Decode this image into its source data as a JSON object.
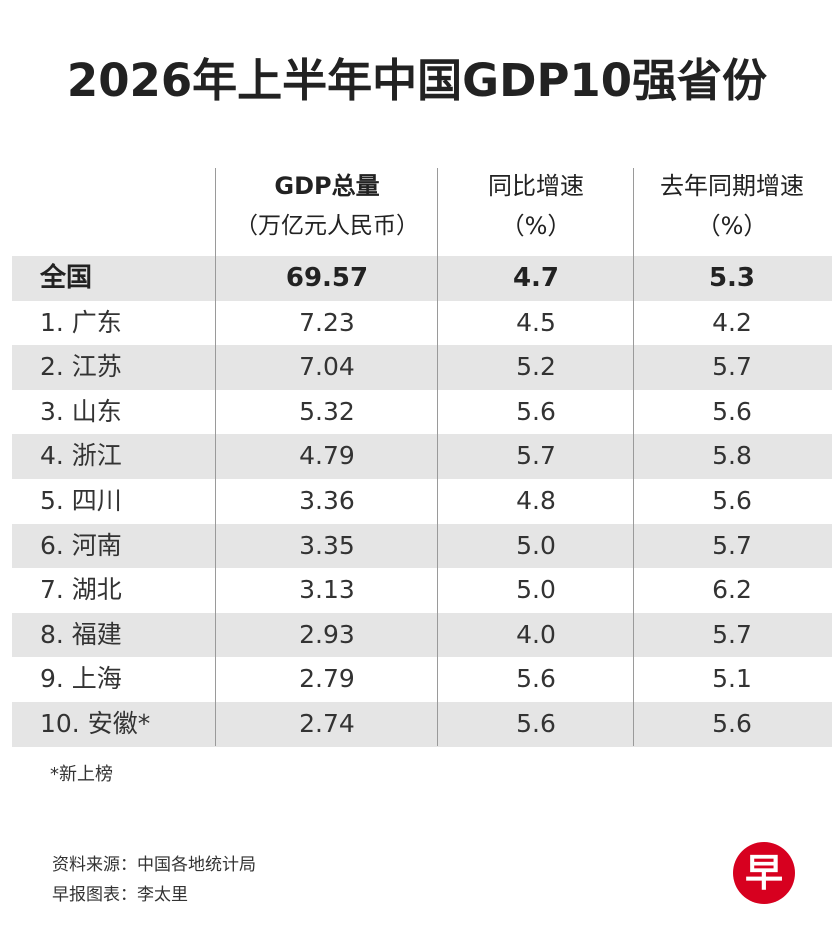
{
  "title": "2026年上半年中国GDP10强省份",
  "columns": {
    "gdp": {
      "line1": "GDP总量",
      "line2": "（万亿元人民币）"
    },
    "yoy": {
      "line1": "同比增速",
      "line2": "（%）"
    },
    "last_year": {
      "line1": "去年同期增速",
      "line2": "（%）"
    }
  },
  "rows": [
    {
      "name": "全国",
      "gdp": "69.57",
      "yoy": "4.7",
      "last_year": "5.3"
    },
    {
      "name": "1. 广东",
      "gdp": "7.23",
      "yoy": "4.5",
      "last_year": "4.2"
    },
    {
      "name": "2. 江苏",
      "gdp": "7.04",
      "yoy": "5.2",
      "last_year": "5.7"
    },
    {
      "name": "3. 山东",
      "gdp": "5.32",
      "yoy": "5.6",
      "last_year": "5.6"
    },
    {
      "name": "4. 浙江",
      "gdp": "4.79",
      "yoy": "5.7",
      "last_year": "5.8"
    },
    {
      "name": "5. 四川",
      "gdp": "3.36",
      "yoy": "4.8",
      "last_year": "5.6"
    },
    {
      "name": "6. 河南",
      "gdp": "3.35",
      "yoy": "5.0",
      "last_year": "5.7"
    },
    {
      "name": "7. 湖北",
      "gdp": "3.13",
      "yoy": "5.0",
      "last_year": "6.2"
    },
    {
      "name": "8. 福建",
      "gdp": "2.93",
      "yoy": "4.0",
      "last_year": "5.7"
    },
    {
      "name": "9. 上海",
      "gdp": "2.79",
      "yoy": "5.6",
      "last_year": "5.1"
    },
    {
      "name": "10. 安徽*",
      "gdp": "2.74",
      "yoy": "5.6",
      "last_year": "5.6"
    }
  ],
  "footnote": "*新上榜",
  "source": {
    "line1": "资料来源：中国各地统计局",
    "line2": "早报图表：李太里"
  },
  "logo": {
    "text": "早",
    "color": "#d7001f"
  },
  "chart_data": {
    "type": "table",
    "title": "2026年上半年中国GDP10强省份",
    "columns": [
      "",
      "GDP总量（万亿元人民币）",
      "同比增速（%）",
      "去年同期增速（%）"
    ],
    "rows": [
      [
        "全国",
        69.57,
        4.7,
        5.3
      ],
      [
        "1. 广东",
        7.23,
        4.5,
        4.2
      ],
      [
        "2. 江苏",
        7.04,
        5.2,
        5.7
      ],
      [
        "3. 山东",
        5.32,
        5.6,
        5.6
      ],
      [
        "4. 浙江",
        4.79,
        5.7,
        5.8
      ],
      [
        "5. 四川",
        3.36,
        4.8,
        5.6
      ],
      [
        "6. 河南",
        3.35,
        5.0,
        5.7
      ],
      [
        "7. 湖北",
        3.13,
        5.0,
        6.2
      ],
      [
        "8. 福建",
        2.93,
        4.0,
        5.7
      ],
      [
        "9. 上海",
        2.79,
        5.6,
        5.1
      ],
      [
        "10. 安徽*",
        2.74,
        5.6,
        5.6
      ]
    ]
  }
}
